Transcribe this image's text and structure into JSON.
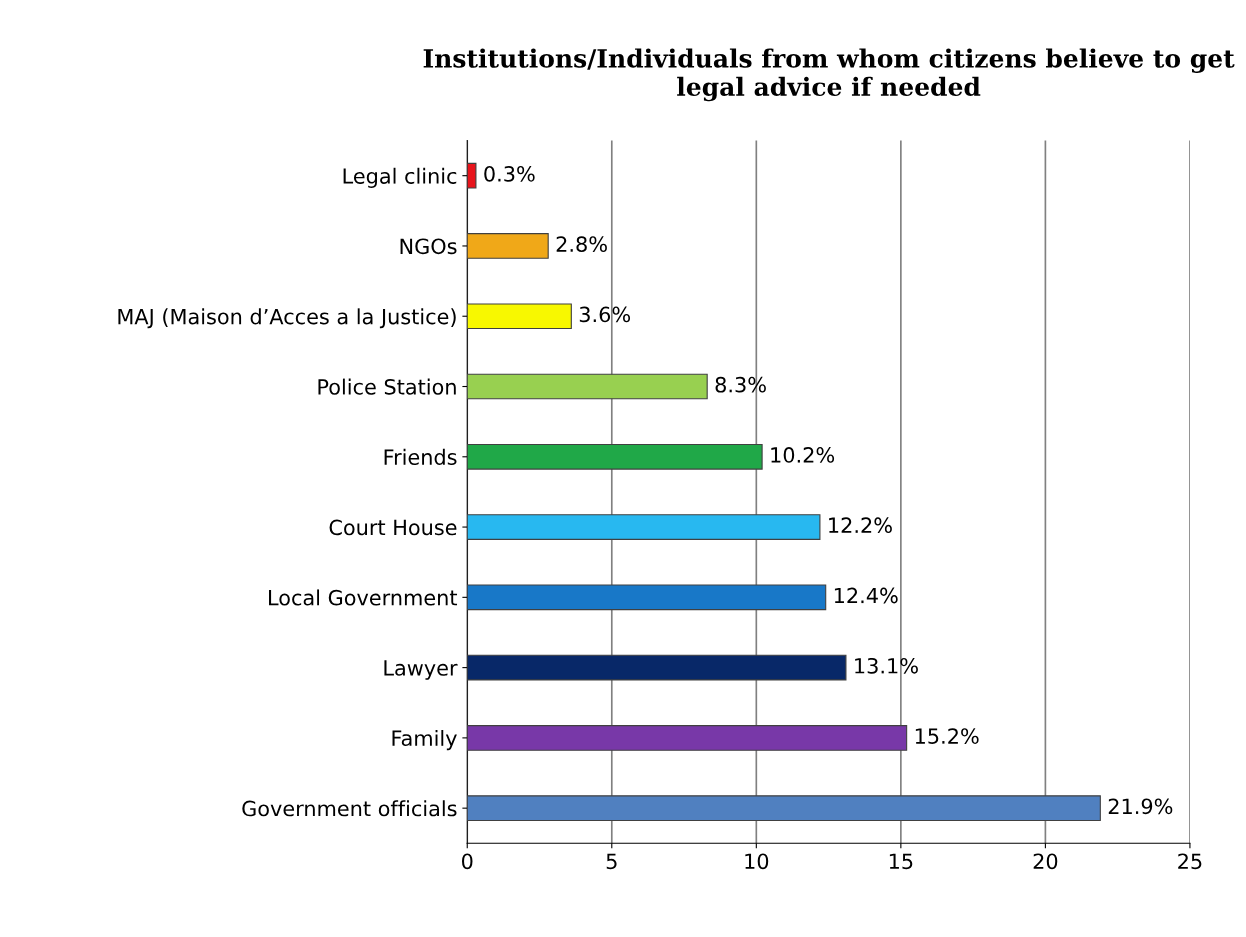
{
  "chart_data": {
    "type": "bar",
    "orientation": "horizontal",
    "title": "Institutions/Individuals from whom citizens believe to get legal advice if needed",
    "categories": [
      "Legal clinic",
      "NGOs",
      "MAJ (Maison d’Acces a la Justice)",
      "Police Station",
      "Friends",
      "Court House",
      "Local Government",
      "Lawyer",
      "Family",
      "Government officials"
    ],
    "values": [
      0.3,
      2.8,
      3.6,
      8.3,
      10.2,
      12.2,
      12.4,
      13.1,
      15.2,
      21.9
    ],
    "value_labels": [
      "0.3%",
      "2.8%",
      "3.6%",
      "8.3%",
      "10.2%",
      "12.2%",
      "12.4%",
      "13.1%",
      "15.2%",
      "21.9%"
    ],
    "colors": [
      "#e8141c",
      "#f0a818",
      "#f8f800",
      "#98d050",
      "#20a848",
      "#28b8f0",
      "#1878c8",
      "#082868",
      "#7838a8",
      "#5080c0"
    ],
    "xlim": [
      0,
      25
    ],
    "xticks": [
      0,
      5,
      10,
      15,
      20,
      25
    ],
    "grid": "x"
  }
}
